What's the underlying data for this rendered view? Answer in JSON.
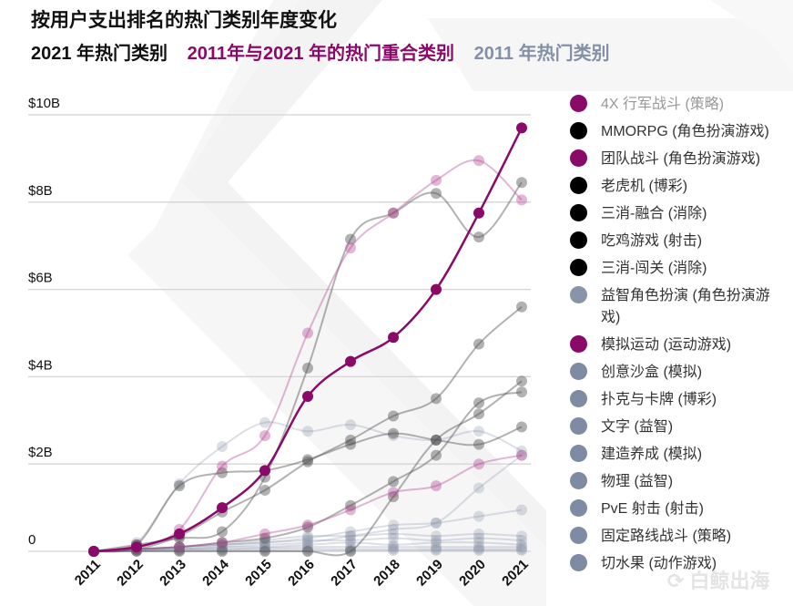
{
  "title": "按用户支出排名的热门类别年度变化",
  "subtitles": [
    {
      "text": "2021 年热门类别",
      "color": "#111111"
    },
    {
      "text": "2011年与2021 年的热门重合类别",
      "color": "#8a0a6a"
    },
    {
      "text": "2011 年热门类别",
      "color": "#8490a6"
    }
  ],
  "watermark": "白鲸出海",
  "colors": {
    "overlap": "#8a0a6a",
    "top2021": "#000000",
    "top2011": "#8490a6"
  },
  "legend": [
    {
      "label": "4X 行军战斗 (策略)",
      "color": "#8a0a6a"
    },
    {
      "label": "MMORPG (角色扮演游戏)",
      "color": "#000000"
    },
    {
      "label": "团队战斗 (角色扮演游戏)",
      "color": "#8a0a6a"
    },
    {
      "label": "老虎机 (博彩)",
      "color": "#000000"
    },
    {
      "label": "三消-融合 (消除)",
      "color": "#000000"
    },
    {
      "label": "吃鸡游戏 (射击)",
      "color": "#000000"
    },
    {
      "label": "三消-闯关 (消除)",
      "color": "#000000"
    },
    {
      "label": "益智角色扮演 (角色扮演游戏)",
      "color": "#8a94a8"
    },
    {
      "label": "模拟运动 (运动游戏)",
      "color": "#8a0a6a"
    },
    {
      "label": "创意沙盒 (模拟)",
      "color": "#7f8ba3"
    },
    {
      "label": "扑克与卡牌 (博彩)",
      "color": "#7f8ba3"
    },
    {
      "label": "文字 (益智)",
      "color": "#7f8ba3"
    },
    {
      "label": "建造养成 (模拟)",
      "color": "#7f8ba3"
    },
    {
      "label": "物理 (益智)",
      "color": "#7f8ba3"
    },
    {
      "label": "PvE 射击 (射击)",
      "color": "#7f8ba3"
    },
    {
      "label": "固定路线战斗 (策略)",
      "color": "#7f8ba3"
    },
    {
      "label": "切水果 (动作游戏)",
      "color": "#7f8ba3"
    }
  ],
  "chart_data": {
    "type": "line",
    "x": [
      2011,
      2012,
      2013,
      2014,
      2015,
      2016,
      2017,
      2018,
      2019,
      2020,
      2021
    ],
    "ylim": [
      0,
      10
    ],
    "yticks": [
      0,
      2,
      4,
      6,
      8,
      10
    ],
    "ytick_labels": [
      "0",
      "$2B",
      "$4B",
      "$6B",
      "$8B",
      "$10B"
    ],
    "xtick_labels": [
      "2011",
      "2012",
      "2013",
      "2014",
      "2015",
      "2016",
      "2017",
      "2018",
      "2019",
      "2020",
      "2021"
    ],
    "grid": "horizontal",
    "legend_position": "right",
    "series": [
      {
        "name": "益智角色扮演 (角色扮演游戏)",
        "group": "top2011",
        "values": [
          0,
          0.2,
          1.55,
          2.4,
          2.95,
          2.75,
          2.9,
          2.65,
          2.55,
          2.75,
          2.3
        ]
      },
      {
        "name": "创意沙盒 (模拟)",
        "group": "top2011",
        "values": [
          0,
          0.02,
          0.05,
          0.1,
          0.15,
          0.2,
          0.35,
          0.5,
          0.65,
          1.45,
          2.2
        ]
      },
      {
        "name": "扑克与卡牌 (博彩)",
        "group": "top2011",
        "values": [
          0,
          0.05,
          0.1,
          0.15,
          0.2,
          0.3,
          0.45,
          0.6,
          0.65,
          0.8,
          0.95
        ]
      },
      {
        "name": "文字 (益智)",
        "group": "top2011",
        "values": [
          0,
          0.05,
          0.1,
          0.15,
          0.25,
          0.35,
          0.35,
          0.4,
          0.35,
          0.4,
          0.35
        ]
      },
      {
        "name": "建造养成 (模拟)",
        "group": "top2011",
        "values": [
          0,
          0.03,
          0.1,
          0.15,
          0.2,
          0.25,
          0.25,
          0.3,
          0.25,
          0.3,
          0.25
        ]
      },
      {
        "name": "物理 (益智)",
        "group": "top2011",
        "values": [
          0,
          0.02,
          0.05,
          0.1,
          0.1,
          0.15,
          0.2,
          0.15,
          0.2,
          0.2,
          0.15
        ]
      },
      {
        "name": "PvE 射击 (射击)",
        "group": "top2011",
        "values": [
          0,
          0.02,
          0.05,
          0.05,
          0.08,
          0.1,
          0.1,
          0.1,
          0.1,
          0.1,
          0.1
        ]
      },
      {
        "name": "固定路线战斗 (策略)",
        "group": "top2011",
        "values": [
          0,
          0.02,
          0.03,
          0.05,
          0.05,
          0.06,
          0.05,
          0.05,
          0.05,
          0.05,
          0.05
        ]
      },
      {
        "name": "切水果 (动作游戏)",
        "group": "top2011",
        "values": [
          0,
          0.01,
          0.02,
          0.02,
          0.02,
          0.02,
          0.02,
          0.02,
          0.02,
          0.02,
          0.02
        ]
      },
      {
        "name": "MMORPG (角色扮演游戏)",
        "group": "top2021",
        "values": [
          0,
          0.15,
          0.3,
          0.45,
          1.7,
          4.2,
          7.15,
          7.75,
          8.2,
          7.2,
          8.45
        ]
      },
      {
        "name": "老虎机 (博彩)",
        "group": "top2021",
        "values": [
          0,
          0.15,
          1.5,
          1.8,
          1.85,
          2.1,
          2.45,
          2.7,
          2.55,
          2.45,
          2.85
        ]
      },
      {
        "name": "三消-融合 (消除)",
        "group": "top2021",
        "values": [
          0,
          0.05,
          0.35,
          0.9,
          1.4,
          2.05,
          2.55,
          3.1,
          3.5,
          4.75,
          5.6
        ]
      },
      {
        "name": "吃鸡游戏 (射击)",
        "group": "top2021",
        "values": [
          0,
          0,
          0,
          0,
          0,
          0,
          0,
          1.25,
          2.55,
          3.15,
          3.9
        ]
      },
      {
        "name": "三消-闯关 (消除)",
        "group": "top2021",
        "values": [
          0,
          0.05,
          0.1,
          0.2,
          0.3,
          0.55,
          1.05,
          1.6,
          2.2,
          3.4,
          3.65
        ]
      },
      {
        "name": "模拟运动 (运动游戏)",
        "group": "overlap-light",
        "values": [
          0,
          0.05,
          0.1,
          0.2,
          0.4,
          0.6,
          0.95,
          1.35,
          1.5,
          2.0,
          2.2
        ]
      },
      {
        "name": "团队战斗 (角色扮演游戏)",
        "group": "overlap-light",
        "values": [
          0,
          0.1,
          0.5,
          1.95,
          2.65,
          5.0,
          6.95,
          7.75,
          8.5,
          8.95,
          8.05
        ]
      },
      {
        "name": "4X 行军战斗 (策略)",
        "group": "overlap",
        "values": [
          0,
          0.1,
          0.4,
          1.0,
          1.85,
          3.55,
          4.35,
          4.9,
          6.0,
          7.75,
          9.7
        ]
      }
    ]
  }
}
